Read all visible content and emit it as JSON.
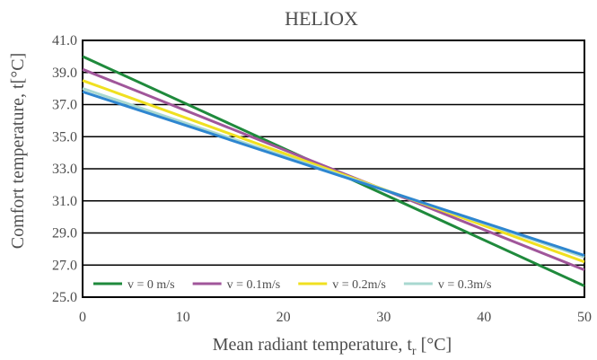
{
  "chart_data": {
    "type": "line",
    "title": "HELIOX",
    "xlabel": "Mean radiant temperature, t",
    "xlabel_sub": "r",
    "xlabel_unit": " [°C]",
    "ylabel": "Comfort temperature, t[°C]",
    "xlim": [
      0,
      50
    ],
    "ylim": [
      25.0,
      41.0
    ],
    "x_ticks": [
      "0",
      "10",
      "20",
      "30",
      "40",
      "50"
    ],
    "y_ticks": [
      "25.0",
      "27.0",
      "29.0",
      "31.0",
      "33.0",
      "35.0",
      "37.0",
      "39.0",
      "41.0"
    ],
    "grid": "horizontal",
    "legend_position": "bottom",
    "series": [
      {
        "name": "v = 0 m/s",
        "color": "#1f8a3c",
        "x": [
          0,
          50
        ],
        "y": [
          40.0,
          25.7
        ]
      },
      {
        "name": "v = 0.1m/s",
        "color": "#a0569a",
        "x": [
          0,
          50
        ],
        "y": [
          39.2,
          26.7
        ]
      },
      {
        "name": "v = 0.2m/s",
        "color": "#f0e020",
        "x": [
          0,
          50
        ],
        "y": [
          38.5,
          27.2
        ]
      },
      {
        "name": "v = 0.3m/s",
        "color": "#a8d8d0",
        "x": [
          0,
          50
        ],
        "y": [
          38.0,
          27.5
        ]
      },
      {
        "name": "",
        "color": "#2e86d0",
        "x": [
          0,
          50
        ],
        "y": [
          37.8,
          27.6
        ]
      }
    ]
  }
}
